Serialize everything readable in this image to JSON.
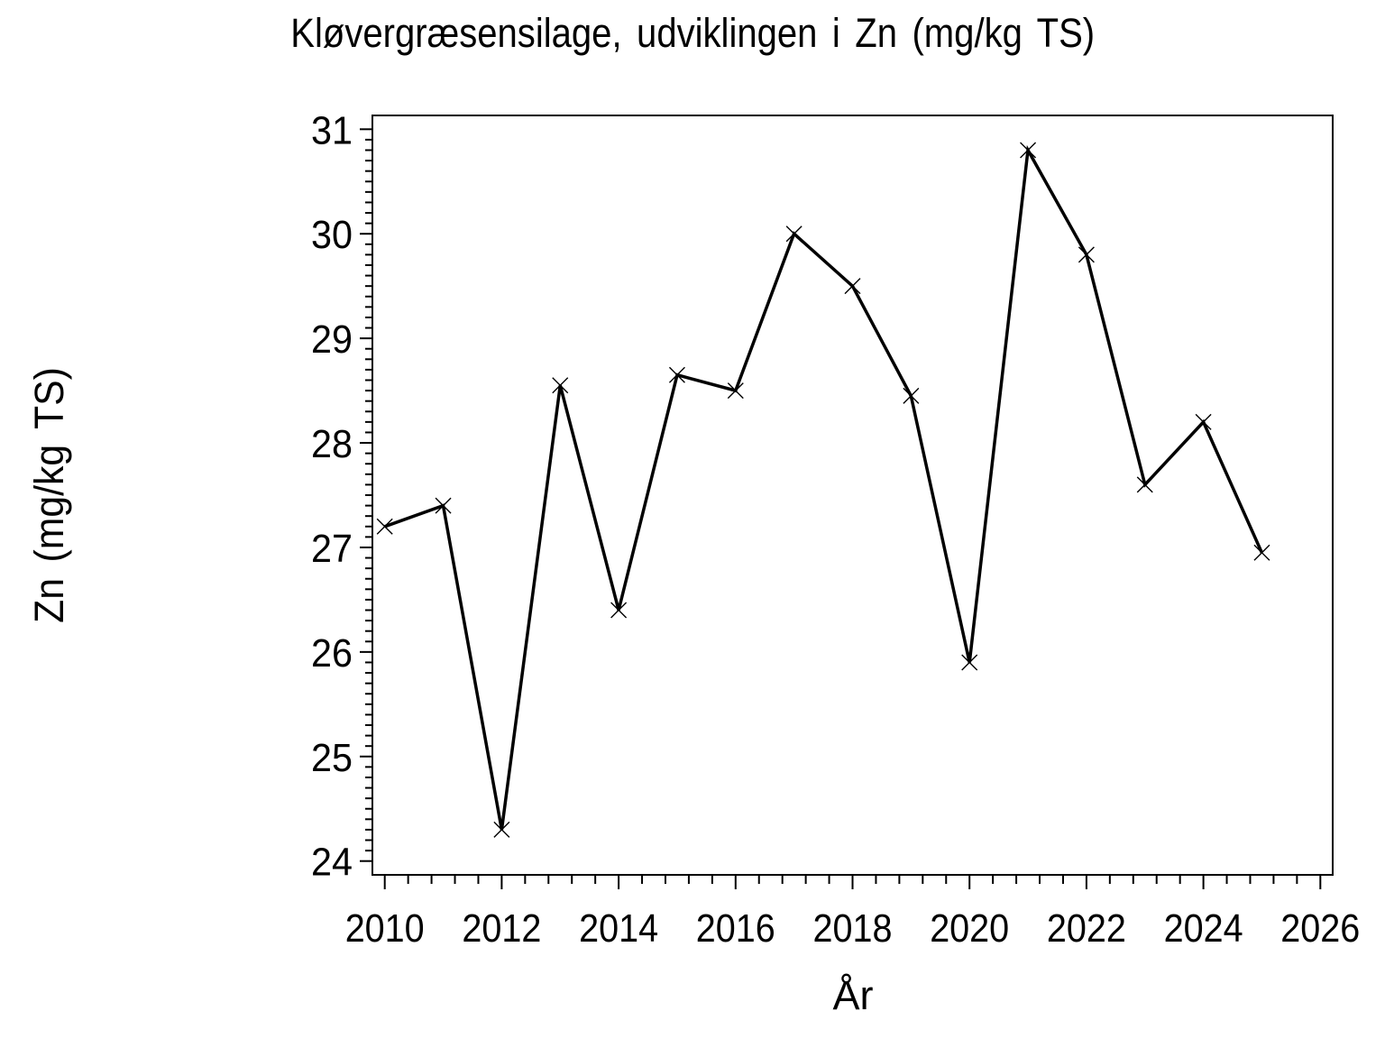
{
  "chart_data": {
    "type": "line",
    "title": "Kløvergræsensilage, udviklingen i Zn (mg/kg TS)",
    "xlabel": "År",
    "ylabel": "Zn (mg/kg TS)",
    "x": [
      2010,
      2011,
      2012,
      2013,
      2014,
      2015,
      2016,
      2017,
      2018,
      2019,
      2020,
      2021,
      2022,
      2023,
      2024,
      2025
    ],
    "values": [
      27.2,
      27.4,
      24.3,
      28.55,
      26.4,
      28.65,
      28.5,
      30.0,
      29.5,
      28.45,
      25.9,
      30.8,
      29.8,
      27.6,
      28.2,
      26.95
    ],
    "xlim": [
      2010,
      2026
    ],
    "ylim": [
      24,
      31
    ],
    "x_ticks": [
      2010,
      2012,
      2014,
      2016,
      2018,
      2020,
      2022,
      2024,
      2026
    ],
    "y_ticks": [
      24,
      25,
      26,
      27,
      28,
      29,
      30,
      31
    ],
    "x_minor_step": 0.4,
    "y_minor_step": 0.1,
    "grid": false,
    "legend": false,
    "marker": "x",
    "line_color": "#000000",
    "axis_color": "#000000",
    "background_color": "#ffffff"
  }
}
